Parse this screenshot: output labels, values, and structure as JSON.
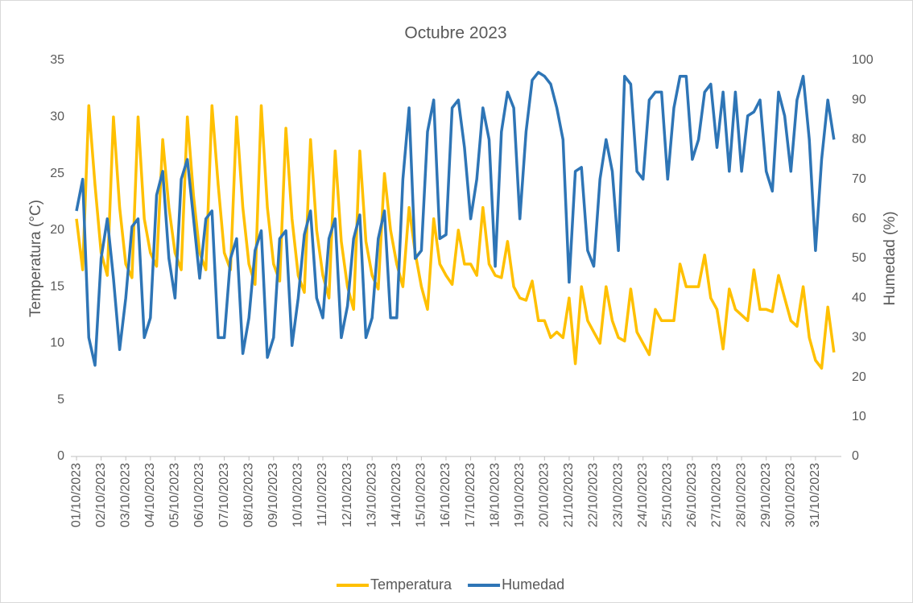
{
  "chart_data": {
    "type": "line",
    "title": "Octubre 2023",
    "y_label": "Temperatura (°C)",
    "y2_label": "Humedad (%)",
    "x": [
      1,
      1.25,
      1.5,
      1.75,
      2,
      2.25,
      2.5,
      2.75,
      3,
      3.25,
      3.5,
      3.75,
      4,
      4.25,
      4.5,
      4.75,
      5,
      5.25,
      5.5,
      5.75,
      6,
      6.25,
      6.5,
      6.75,
      7,
      7.25,
      7.5,
      7.75,
      8,
      8.25,
      8.5,
      8.75,
      9,
      9.25,
      9.5,
      9.75,
      10,
      10.25,
      10.5,
      10.75,
      11,
      11.25,
      11.5,
      11.75,
      12,
      12.25,
      12.5,
      12.75,
      13,
      13.25,
      13.5,
      13.75,
      14,
      14.25,
      14.5,
      14.75,
      15,
      15.25,
      15.5,
      15.75,
      16,
      16.25,
      16.5,
      16.75,
      17,
      17.25,
      17.5,
      17.75,
      18,
      18.25,
      18.5,
      18.75,
      19,
      19.25,
      19.5,
      19.75,
      20,
      20.25,
      20.5,
      20.75,
      21,
      21.25,
      21.5,
      21.75,
      22,
      22.25,
      22.5,
      22.75,
      23,
      23.25,
      23.5,
      23.75,
      24,
      24.25,
      24.5,
      24.75,
      25,
      25.25,
      25.5,
      25.75,
      26,
      26.25,
      26.5,
      26.75,
      27,
      27.25,
      27.5,
      27.75,
      28,
      28.25,
      28.5,
      28.75,
      29,
      29.25,
      29.5,
      29.75,
      30,
      30.25,
      30.5,
      30.75,
      31,
      31.25,
      31.5,
      31.75
    ],
    "series": [
      {
        "name": "Temperatura",
        "color": "#ffc000",
        "values": [
          21,
          16.5,
          31,
          24,
          18,
          16,
          30,
          22,
          17,
          15.8,
          30,
          21,
          18,
          16.8,
          28,
          22,
          18,
          16.5,
          30,
          23,
          18,
          16.5,
          31,
          24,
          18,
          16.5,
          30,
          22,
          17,
          15.2,
          31,
          22,
          17,
          15.5,
          29,
          21,
          16,
          14.5,
          28,
          20,
          16,
          14,
          27,
          19,
          15,
          13,
          27,
          19,
          16,
          14.8,
          25,
          20,
          17,
          15,
          22,
          18,
          15,
          13,
          21,
          17,
          16,
          15.2,
          20,
          17,
          17,
          16,
          22,
          17,
          16,
          15.8,
          19,
          15,
          14,
          13.8,
          15.5,
          12,
          12,
          10.5,
          11,
          10.5,
          14,
          8.2,
          15,
          12,
          11,
          10,
          15,
          12,
          10.5,
          10.2,
          14.8,
          11,
          10,
          9,
          13,
          12,
          12,
          12,
          17,
          15,
          15,
          15,
          17.8,
          14,
          13,
          9.5,
          14.8,
          13,
          12.5,
          12,
          16.5,
          13,
          13,
          12.8,
          16,
          14,
          12,
          11.5,
          15,
          10.5,
          8.5,
          7.8,
          13.2,
          9.2
        ]
      },
      {
        "name": "Humedad",
        "color": "#2e75b6",
        "axis": "y2",
        "values": [
          62,
          70,
          30,
          23,
          50,
          60,
          45,
          27,
          40,
          58,
          60,
          30,
          35,
          66,
          72,
          50,
          40,
          70,
          75,
          60,
          45,
          60,
          62,
          30,
          30,
          50,
          55,
          26,
          35,
          52,
          57,
          25,
          30,
          55,
          57,
          28,
          40,
          56,
          62,
          40,
          35,
          55,
          60,
          30,
          38,
          55,
          61,
          30,
          35,
          55,
          62,
          35,
          35,
          70,
          88,
          50,
          52,
          82,
          90,
          55,
          56,
          88,
          90,
          78,
          60,
          70,
          88,
          80,
          48,
          82,
          92,
          88,
          60,
          82,
          95,
          97,
          96,
          94,
          88,
          80,
          44,
          72,
          73,
          52,
          48,
          70,
          80,
          72,
          52,
          96,
          94,
          72,
          70,
          90,
          92,
          92,
          70,
          88,
          96,
          96,
          75,
          80,
          92,
          94,
          78,
          92,
          72,
          92,
          72,
          86,
          87,
          90,
          72,
          67,
          92,
          86,
          72,
          90,
          96,
          80,
          52,
          75,
          90,
          80
        ]
      }
    ],
    "xlim": [
      0.77,
      32.05
    ],
    "xticks": [
      {
        "value": 1,
        "label": "01/10/2023"
      },
      {
        "value": 2,
        "label": "02/10/2023"
      },
      {
        "value": 3,
        "label": "03/10/2023"
      },
      {
        "value": 4,
        "label": "04/10/2023"
      },
      {
        "value": 5,
        "label": "05/10/2023"
      },
      {
        "value": 6,
        "label": "06/10/2023"
      },
      {
        "value": 7,
        "label": "07/10/2023"
      },
      {
        "value": 8,
        "label": "08/10/2023"
      },
      {
        "value": 9,
        "label": "09/10/2023"
      },
      {
        "value": 10,
        "label": "10/10/2023"
      },
      {
        "value": 11,
        "label": "11/10/2023"
      },
      {
        "value": 12,
        "label": "12/10/2023"
      },
      {
        "value": 13,
        "label": "13/10/2023"
      },
      {
        "value": 14,
        "label": "14/10/2023"
      },
      {
        "value": 15,
        "label": "15/10/2023"
      },
      {
        "value": 16,
        "label": "16/10/2023"
      },
      {
        "value": 17,
        "label": "17/10/2023"
      },
      {
        "value": 18,
        "label": "18/10/2023"
      },
      {
        "value": 19,
        "label": "19/10/2023"
      },
      {
        "value": 20,
        "label": "20/10/2023"
      },
      {
        "value": 21,
        "label": "21/10/2023"
      },
      {
        "value": 22,
        "label": "22/10/2023"
      },
      {
        "value": 23,
        "label": "23/10/2023"
      },
      {
        "value": 24,
        "label": "24/10/2023"
      },
      {
        "value": 25,
        "label": "25/10/2023"
      },
      {
        "value": 26,
        "label": "26/10/2023"
      },
      {
        "value": 27,
        "label": "27/10/2023"
      },
      {
        "value": 28,
        "label": "28/10/2023"
      },
      {
        "value": 29,
        "label": "29/10/2023"
      },
      {
        "value": 30,
        "label": "30/10/2023"
      },
      {
        "value": 31,
        "label": "31/10/2023"
      }
    ],
    "ylim": [
      0,
      35
    ],
    "yticks": [
      0,
      5,
      10,
      15,
      20,
      25,
      30,
      35
    ],
    "y2lim": [
      0,
      100
    ],
    "y2ticks": [
      0,
      10,
      20,
      30,
      40,
      50,
      60,
      70,
      80,
      90,
      100
    ],
    "grid": false,
    "legend": "bottom"
  }
}
